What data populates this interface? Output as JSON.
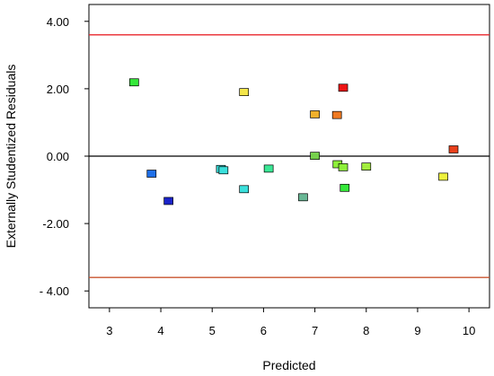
{
  "chart_data": {
    "type": "scatter",
    "xlabel": "Predicted",
    "ylabel": "Externally Studentized Residuals",
    "xlim": [
      2.6,
      10.4
    ],
    "ylim": [
      -4.5,
      4.5
    ],
    "x_ticks": [
      3,
      4,
      5,
      6,
      7,
      8,
      9,
      10
    ],
    "x_tick_labels": [
      "3",
      "4",
      "5",
      "6",
      "7",
      "8",
      "9",
      "10"
    ],
    "y_ticks": [
      4,
      2,
      0,
      -2,
      -4
    ],
    "y_tick_labels": [
      "4.00",
      "2.00",
      "0.00",
      "-2.00",
      "- 4.00"
    ],
    "grid": false,
    "reference_lines": [
      {
        "y": 3.6,
        "color": "#e8262b"
      },
      {
        "y": 0.0,
        "color": "#000000"
      },
      {
        "y": -3.6,
        "color": "#c8552f"
      }
    ],
    "points": [
      {
        "x": 3.48,
        "y": 2.19,
        "color": "#35e83a"
      },
      {
        "x": 3.82,
        "y": -0.52,
        "color": "#1f6fe8"
      },
      {
        "x": 4.15,
        "y": -1.33,
        "color": "#1a23c9"
      },
      {
        "x": 5.17,
        "y": -0.38,
        "color": "#3be0dc"
      },
      {
        "x": 5.22,
        "y": -0.42,
        "color": "#3be0dc"
      },
      {
        "x": 5.62,
        "y": 1.9,
        "color": "#f4e64a"
      },
      {
        "x": 5.62,
        "y": -0.98,
        "color": "#3be0dc"
      },
      {
        "x": 6.1,
        "y": -0.37,
        "color": "#3be896"
      },
      {
        "x": 6.77,
        "y": -1.22,
        "color": "#69b795"
      },
      {
        "x": 7.0,
        "y": 1.24,
        "color": "#f0b02c"
      },
      {
        "x": 7.0,
        "y": 0.01,
        "color": "#76d04c"
      },
      {
        "x": 7.43,
        "y": 1.22,
        "color": "#f07a22"
      },
      {
        "x": 7.44,
        "y": -0.24,
        "color": "#8ef03a"
      },
      {
        "x": 7.55,
        "y": 2.03,
        "color": "#ee1414"
      },
      {
        "x": 7.55,
        "y": -0.33,
        "color": "#8ef03a"
      },
      {
        "x": 7.58,
        "y": -0.94,
        "color": "#35e83a"
      },
      {
        "x": 8.0,
        "y": -0.31,
        "color": "#a2ec3e"
      },
      {
        "x": 9.5,
        "y": -0.61,
        "color": "#eef23c"
      },
      {
        "x": 9.7,
        "y": 0.2,
        "color": "#e8401c"
      }
    ]
  }
}
